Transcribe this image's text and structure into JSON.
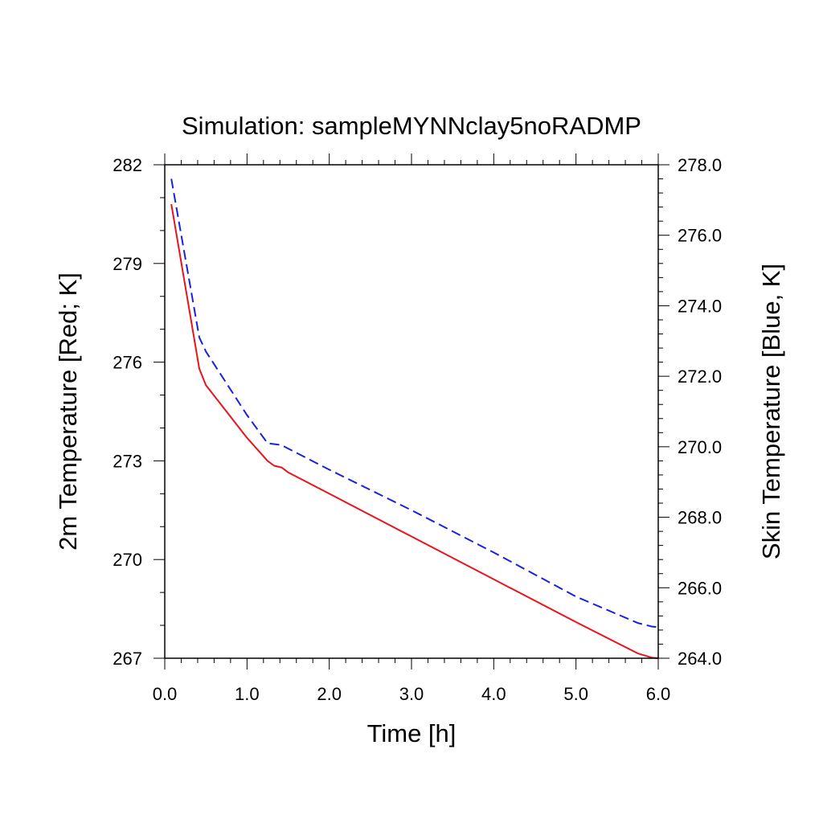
{
  "chart_data": {
    "type": "line",
    "title": "Simulation: sampleMYNNclay5noRADMP",
    "xlabel": "Time [h]",
    "ylabel_left": "2m Temperature [Red; K]",
    "ylabel_right": "Skin Temperature [Blue, K]",
    "xlim": [
      0,
      6
    ],
    "ylim_left": [
      267,
      282
    ],
    "ylim_right": [
      264,
      278
    ],
    "x_ticks": [
      "0.0",
      "1.0",
      "2.0",
      "3.0",
      "4.0",
      "5.0",
      "6.0"
    ],
    "y_left_ticks": [
      "267",
      "270",
      "273",
      "276",
      "279",
      "282"
    ],
    "y_right_ticks": [
      "264.0",
      "266.0",
      "268.0",
      "270.0",
      "272.0",
      "274.0",
      "276.0",
      "278.0"
    ],
    "grid": false,
    "series": [
      {
        "axis": "left",
        "color": "#e8141c",
        "style": "solid",
        "x": [
          0.08,
          0.42,
          0.5,
          0.75,
          1.0,
          1.25,
          1.33,
          1.42,
          1.5,
          2.0,
          3.0,
          4.0,
          5.0,
          5.75,
          5.92,
          6.0
        ],
        "y": [
          280.8,
          275.8,
          275.3,
          274.5,
          273.7,
          273.0,
          272.85,
          272.8,
          272.65,
          272.0,
          270.7,
          269.4,
          268.1,
          267.15,
          267.02,
          267.0
        ]
      },
      {
        "axis": "right",
        "color": "#1a20e0",
        "style": "dashed",
        "x": [
          0.08,
          0.42,
          0.5,
          0.75,
          1.0,
          1.25,
          1.42,
          1.5,
          2.0,
          3.0,
          4.0,
          5.0,
          5.75,
          5.92,
          6.0
        ],
        "y": [
          277.6,
          273.1,
          272.7,
          271.8,
          270.9,
          270.1,
          270.05,
          269.95,
          269.35,
          268.2,
          267.0,
          265.75,
          265.0,
          264.9,
          264.88
        ]
      }
    ]
  }
}
